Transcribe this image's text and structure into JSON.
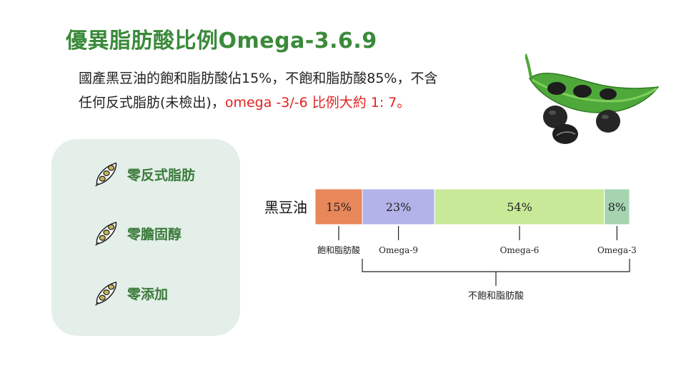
{
  "title": "優異脂肪酸比例Omega-3.6.9",
  "description": {
    "line1": "國產黑豆油的飽和脂肪酸佔15%，不飽和脂肪酸85%，不含",
    "line2_normal": "任何反式脂肪(未檢出)，",
    "line2_highlight": "omega -3/-6 比例大約 1: 7。"
  },
  "features": [
    {
      "label": "零反式脂肪",
      "icon": "soybean-pod-icon"
    },
    {
      "label": "零膽固醇",
      "icon": "soybean-pod-icon"
    },
    {
      "label": "零添加",
      "icon": "soybean-pod-icon"
    }
  ],
  "colors": {
    "title": "#3a8a3a",
    "highlight": "#e0231f",
    "panel": "#e3efe8",
    "saturated": "#e8875a",
    "omega9": "#b3b3ea",
    "omega6": "#c8ea98",
    "omega3": "#a6d4b0"
  },
  "chart_data": {
    "type": "bar",
    "orientation": "horizontal-stacked",
    "category": "黑豆油",
    "series": [
      {
        "name": "飽和脂肪酸",
        "value": 15,
        "label": "15%"
      },
      {
        "name": "Omega-9",
        "value": 23,
        "label": "23%"
      },
      {
        "name": "Omega-6",
        "value": 54,
        "label": "54%"
      },
      {
        "name": "Omega-3",
        "value": 8,
        "label": "8%"
      }
    ],
    "group_label": "不飽和脂肪酸",
    "unit": "%"
  }
}
